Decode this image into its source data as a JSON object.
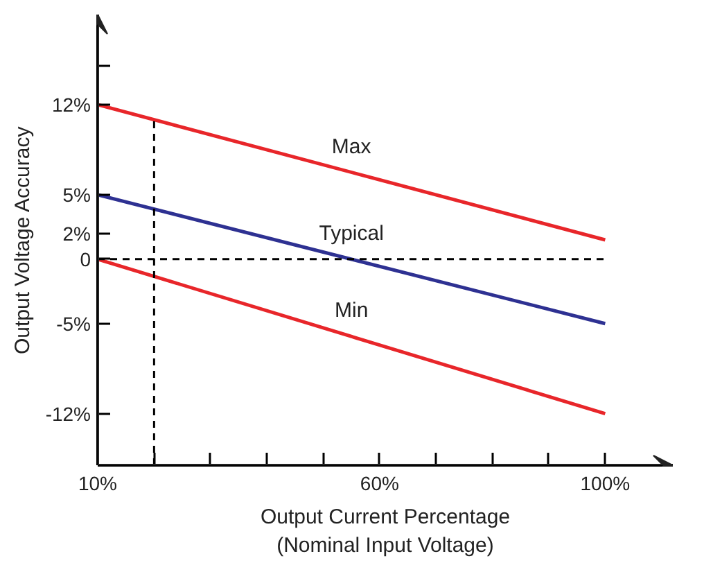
{
  "chart_data": {
    "type": "line",
    "xlabel": "Output Current Percentage\n(Nominal Input Voltage)",
    "ylabel": "Output Voltage Accuracy",
    "xlim": [
      10,
      112
    ],
    "ylim": [
      -16,
      19
    ],
    "xticks": [
      {
        "value": 10,
        "label": "10%"
      },
      {
        "value": 20,
        "label": null
      },
      {
        "value": 30,
        "label": null
      },
      {
        "value": 40,
        "label": null
      },
      {
        "value": 50,
        "label": null
      },
      {
        "value": 60,
        "label": "60%"
      },
      {
        "value": 70,
        "label": null
      },
      {
        "value": 80,
        "label": null
      },
      {
        "value": 90,
        "label": null
      },
      {
        "value": 100,
        "label": "100%"
      }
    ],
    "yticks": [
      {
        "value": -12,
        "label": "-12%"
      },
      {
        "value": -5,
        "label": "-5%"
      },
      0,
      {
        "value": 2,
        "label": "2%"
      },
      {
        "value": 5,
        "label": "5%"
      },
      {
        "value": 12,
        "label": "12%"
      },
      {
        "value": 15,
        "label": null
      }
    ],
    "grid": false,
    "series": [
      {
        "name": "Max",
        "color": "#e8262a",
        "x": [
          10,
          100
        ],
        "values": [
          12,
          1.5
        ]
      },
      {
        "name": "Typical",
        "color": "#2e3192",
        "x": [
          10,
          100
        ],
        "values": [
          5,
          -5
        ]
      },
      {
        "name": "Min",
        "color": "#e8262a",
        "x": [
          10,
          100
        ],
        "values": [
          0,
          -12
        ]
      },
      {
        "color": "#000000",
        "line_style": "dashed",
        "x": [
          10,
          100
        ],
        "values": [
          0,
          0
        ]
      },
      {
        "color": "#000000",
        "line_style": "dashed",
        "x": [
          20,
          20
        ],
        "values": [
          -16,
          10.8
        ]
      }
    ]
  }
}
